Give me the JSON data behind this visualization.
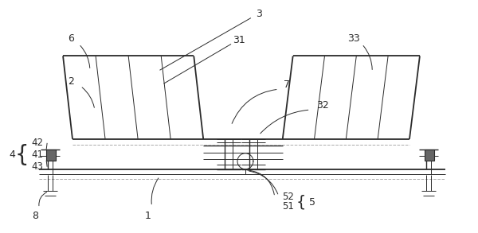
{
  "bg_color": "#ffffff",
  "line_color": "#2a2a2a",
  "dashed_color": "#aaaaaa",
  "fig_w": 6.0,
  "fig_h": 2.93,
  "lw_main": 1.3,
  "lw_thin": 0.7,
  "lw_med": 1.0
}
